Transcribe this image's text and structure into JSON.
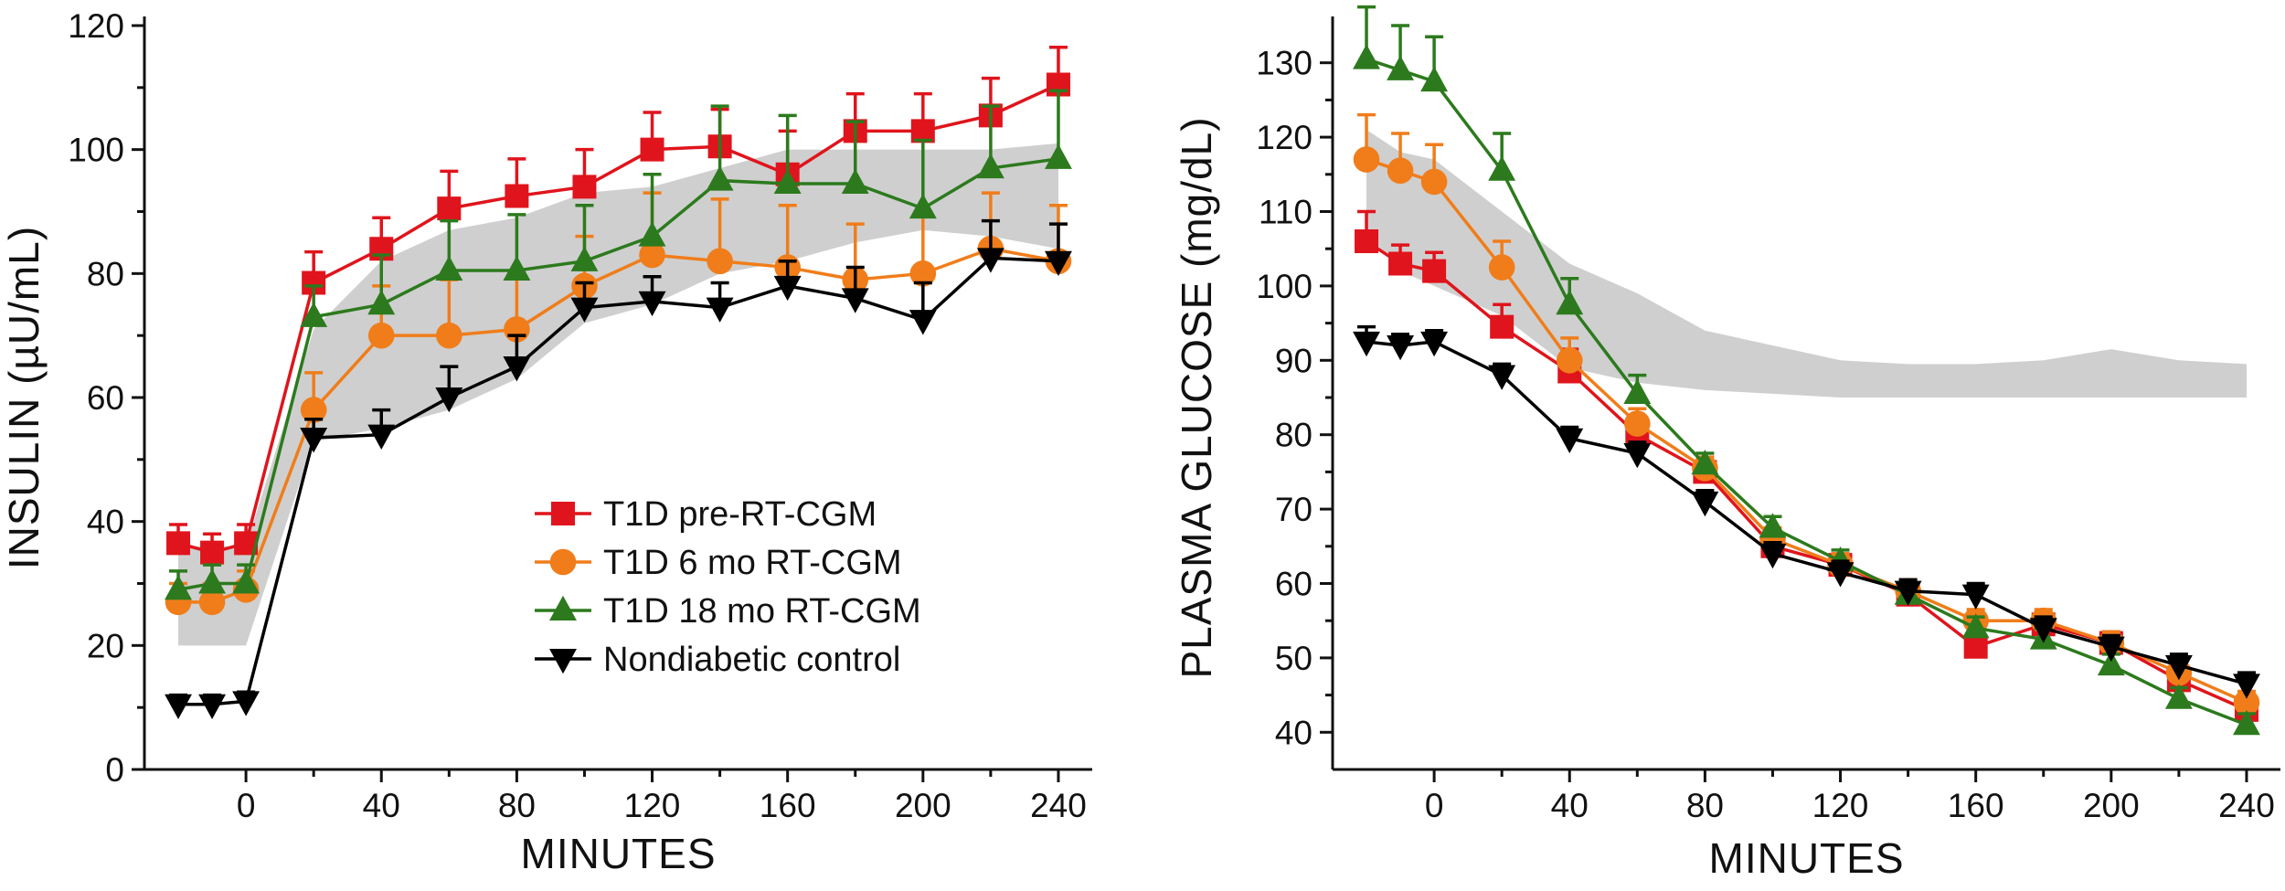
{
  "chart_data": [
    {
      "id": "insulin",
      "type": "line",
      "title": "",
      "xlabel": "MINUTES",
      "ylabel": "INSULIN (µU/mL)",
      "xlim": [
        -30,
        250
      ],
      "ylim": [
        0,
        120
      ],
      "xticks": [
        0,
        40,
        80,
        120,
        160,
        200,
        240
      ],
      "yticks": [
        0,
        20,
        40,
        60,
        80,
        100,
        120
      ],
      "legend_position": "lower-center",
      "reference_band": {
        "x": [
          -20,
          -10,
          0,
          20,
          40,
          60,
          80,
          100,
          120,
          140,
          160,
          180,
          200,
          220,
          240
        ],
        "lower": [
          20,
          20,
          20,
          53,
          55,
          58,
          63,
          72,
          75,
          80,
          82,
          85,
          87,
          86,
          84
        ],
        "upper": [
          36,
          36,
          36,
          71,
          82,
          87,
          89,
          93,
          94,
          97,
          100,
          100,
          100,
          100,
          101
        ]
      },
      "series": [
        {
          "name": "T1D pre-RT-CGM",
          "color": "#e0141c",
          "marker": "square",
          "x": [
            -20,
            -10,
            0,
            20,
            40,
            60,
            80,
            100,
            120,
            140,
            160,
            180,
            200,
            220,
            240
          ],
          "y": [
            36.5,
            35,
            36.5,
            78.5,
            84,
            90.5,
            92.5,
            94,
            100,
            100.5,
            96,
            103,
            103,
            105.5,
            110.5
          ],
          "err": [
            3,
            3,
            3,
            5,
            5,
            6,
            6,
            6,
            6,
            6,
            7,
            6,
            6,
            6,
            6
          ]
        },
        {
          "name": "T1D 6 mo RT-CGM",
          "color": "#f07d1a",
          "marker": "circle",
          "x": [
            -20,
            -10,
            0,
            20,
            40,
            60,
            80,
            100,
            120,
            140,
            160,
            180,
            200,
            220,
            240
          ],
          "y": [
            27,
            27,
            29,
            58,
            70,
            70,
            71,
            78,
            83,
            82,
            81,
            79,
            80,
            84,
            82
          ],
          "err": [
            3,
            3,
            3,
            6,
            8,
            9,
            9,
            8,
            10,
            10,
            10,
            9,
            10,
            9,
            9
          ]
        },
        {
          "name": "T1D 18 mo RT-CGM",
          "color": "#2c7a1d",
          "marker": "triangle-up",
          "x": [
            -20,
            -10,
            0,
            20,
            40,
            60,
            80,
            100,
            120,
            140,
            160,
            180,
            200,
            220,
            240
          ],
          "y": [
            29,
            30,
            30,
            73,
            75,
            80.5,
            80.5,
            82,
            86,
            95,
            94.5,
            94.5,
            90.5,
            97,
            98.5
          ],
          "err": [
            3,
            3,
            3,
            5,
            8,
            8,
            9,
            9,
            10,
            12,
            11,
            10,
            11,
            10,
            11
          ]
        },
        {
          "name": "Nondiabetic control",
          "color": "#000000",
          "marker": "triangle-down",
          "x": [
            -20,
            -10,
            0,
            20,
            40,
            60,
            80,
            100,
            120,
            140,
            160,
            180,
            200,
            220,
            240
          ],
          "y": [
            10.5,
            10.5,
            11,
            53.5,
            54,
            60,
            65,
            74.5,
            75.5,
            74.5,
            78,
            76,
            72.5,
            82.5,
            82
          ],
          "err": [
            1.5,
            1.5,
            1.5,
            3,
            4,
            5,
            5,
            4,
            4,
            4,
            4,
            5,
            6,
            6,
            6
          ]
        }
      ]
    },
    {
      "id": "glucose",
      "type": "line",
      "title": "",
      "xlabel": "MINUTES",
      "ylabel": "PLASMA GLUCOSE (mg/dL)",
      "xlim": [
        -30,
        250
      ],
      "ylim": [
        35,
        135
      ],
      "xticks": [
        0,
        40,
        80,
        120,
        160,
        200,
        240
      ],
      "yticks": [
        40,
        50,
        60,
        70,
        80,
        90,
        100,
        110,
        120,
        130
      ],
      "reference_band": {
        "x": [
          -20,
          -10,
          0,
          20,
          40,
          60,
          80,
          100,
          120,
          140,
          160,
          180,
          200,
          220,
          240
        ],
        "lower": [
          107,
          102,
          100,
          96,
          89,
          87,
          86,
          85.5,
          85,
          85,
          85,
          85,
          85,
          85,
          85
        ],
        "upper": [
          121,
          118,
          117,
          110,
          103,
          99,
          94,
          92,
          90,
          89.5,
          89.5,
          90,
          91.5,
          90,
          89.5
        ]
      },
      "series": [
        {
          "name": "T1D pre-RT-CGM",
          "color": "#e0141c",
          "marker": "square",
          "x": [
            -20,
            -10,
            0,
            20,
            40,
            60,
            80,
            100,
            120,
            140,
            160,
            180,
            200,
            220,
            240
          ],
          "y": [
            106,
            103,
            102,
            94.5,
            88.5,
            80,
            75,
            65,
            62.5,
            58.5,
            51.5,
            54.5,
            52,
            47,
            43
          ],
          "err": [
            4,
            2.5,
            2.5,
            3,
            3,
            2,
            1.5,
            1.5,
            1.5,
            1.5,
            1.5,
            1.5,
            1.5,
            1.5,
            1.5
          ]
        },
        {
          "name": "T1D 6 mo RT-CGM",
          "color": "#f07d1a",
          "marker": "circle",
          "x": [
            -20,
            -10,
            0,
            20,
            40,
            60,
            80,
            100,
            120,
            140,
            160,
            180,
            200,
            220,
            240
          ],
          "y": [
            117,
            115.5,
            114,
            102.5,
            90,
            81.5,
            75.5,
            66,
            62.5,
            59,
            55,
            55,
            52,
            48,
            44
          ],
          "err": [
            6,
            5,
            5,
            3.5,
            3,
            2,
            1.5,
            1.5,
            1.5,
            1.5,
            1.5,
            1.5,
            1.5,
            1.5,
            1.5
          ]
        },
        {
          "name": "T1D 18 mo RT-CGM",
          "color": "#2c7a1d",
          "marker": "triangle-up",
          "x": [
            -20,
            -10,
            0,
            20,
            40,
            60,
            80,
            100,
            120,
            140,
            160,
            180,
            200,
            220,
            240
          ],
          "y": [
            130.5,
            129,
            127.5,
            115.5,
            97.5,
            85.5,
            76,
            67.5,
            63,
            58.5,
            54,
            52.5,
            49,
            44.5,
            41
          ],
          "err": [
            7,
            6,
            6,
            5,
            3.5,
            2.5,
            1.5,
            1.5,
            1.5,
            1.5,
            1.5,
            1.5,
            1.5,
            1.5,
            1.5
          ]
        },
        {
          "name": "Nondiabetic control",
          "color": "#000000",
          "marker": "triangle-down",
          "x": [
            -20,
            -10,
            0,
            20,
            40,
            60,
            80,
            100,
            120,
            140,
            160,
            180,
            200,
            220,
            240
          ],
          "y": [
            92.5,
            92,
            92.5,
            88,
            79.5,
            77.5,
            71,
            64,
            61.5,
            59,
            58.5,
            54,
            51.5,
            49,
            46.5
          ],
          "err": [
            2,
            1.5,
            1.5,
            1.5,
            1.5,
            1.5,
            1.5,
            1.5,
            1.5,
            1.5,
            1.5,
            1.5,
            1.5,
            1.5,
            1.5
          ]
        }
      ]
    }
  ]
}
